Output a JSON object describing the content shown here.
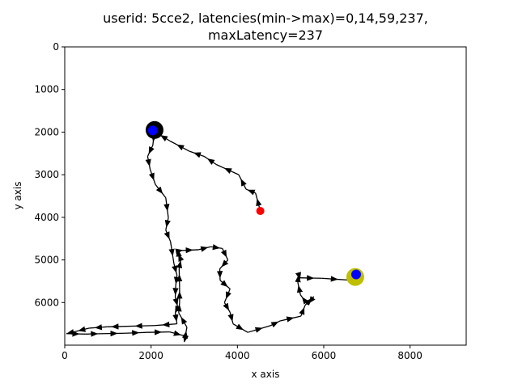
{
  "chart_data": {
    "type": "scatter",
    "title_line1": "userid: 5cce2, latencies(min->max)=0,14,59,237,",
    "title_line2": "maxLatency=237",
    "xlabel": "x axis",
    "ylabel": "y axis",
    "xlim": [
      0,
      9300
    ],
    "ylim": [
      7000,
      0
    ],
    "y_inverted": true,
    "xticks": [
      0,
      2000,
      4000,
      6000,
      8000
    ],
    "yticks": [
      0,
      1000,
      2000,
      3000,
      4000,
      5000,
      6000
    ],
    "grid": false,
    "path_color": "#000000",
    "path": [
      [
        4530,
        3850
      ],
      [
        4420,
        3430
      ],
      [
        4200,
        3340
      ],
      [
        4030,
        3000
      ],
      [
        3510,
        2760
      ],
      [
        3230,
        2570
      ],
      [
        2890,
        2450
      ],
      [
        2440,
        2210
      ],
      [
        2130,
        2020
      ],
      [
        2080,
        1950
      ],
      [
        2040,
        1960
      ],
      [
        2080,
        1980
      ],
      [
        2040,
        2310
      ],
      [
        1920,
        2570
      ],
      [
        1980,
        2880
      ],
      [
        2100,
        3230
      ],
      [
        2340,
        3540
      ],
      [
        2400,
        4010
      ],
      [
        2340,
        4300
      ],
      [
        2450,
        4570
      ],
      [
        2530,
        5090
      ],
      [
        2600,
        5360
      ],
      [
        2570,
        5610
      ],
      [
        2560,
        5880
      ],
      [
        2620,
        6110
      ],
      [
        2560,
        6240
      ],
      [
        2600,
        6500
      ],
      [
        2080,
        6540
      ],
      [
        1340,
        6560
      ],
      [
        980,
        6570
      ],
      [
        570,
        6600
      ],
      [
        210,
        6690
      ],
      [
        40,
        6730
      ],
      [
        480,
        6740
      ],
      [
        900,
        6730
      ],
      [
        1390,
        6720
      ],
      [
        1900,
        6700
      ],
      [
        2430,
        6690
      ],
      [
        2800,
        6790
      ],
      [
        2770,
        6920
      ],
      [
        2830,
        6580
      ],
      [
        2640,
        6240
      ],
      [
        2660,
        6000
      ],
      [
        2660,
        5640
      ],
      [
        2650,
        5200
      ],
      [
        2690,
        5000
      ],
      [
        2640,
        4880
      ],
      [
        2630,
        4790
      ],
      [
        2680,
        4780
      ],
      [
        3100,
        4760
      ],
      [
        3380,
        4690
      ],
      [
        3650,
        4730
      ],
      [
        3780,
        5000
      ],
      [
        3590,
        5210
      ],
      [
        3600,
        5480
      ],
      [
        3830,
        5680
      ],
      [
        3700,
        6000
      ],
      [
        3830,
        6230
      ],
      [
        3900,
        6500
      ],
      [
        4240,
        6700
      ],
      [
        4770,
        6540
      ],
      [
        4990,
        6430
      ],
      [
        5470,
        6320
      ],
      [
        5570,
        6060
      ],
      [
        5770,
        5860
      ],
      [
        5630,
        6050
      ],
      [
        5460,
        5820
      ],
      [
        5400,
        5530
      ],
      [
        5420,
        5340
      ],
      [
        5440,
        5420
      ],
      [
        5950,
        5430
      ],
      [
        6550,
        5470
      ],
      [
        6730,
        5400
      ]
    ],
    "markers": [
      {
        "x": 2080,
        "y": 1950,
        "r": 11,
        "color": "#000000"
      },
      {
        "x": 2040,
        "y": 1960,
        "r": 6,
        "color": "#0000ff"
      },
      {
        "x": 6730,
        "y": 5400,
        "r": 11,
        "color": "#bfbf00"
      },
      {
        "x": 6750,
        "y": 5340,
        "r": 6,
        "color": "#0000ff"
      },
      {
        "x": 4530,
        "y": 3850,
        "r": 5,
        "color": "#ff0000"
      }
    ]
  }
}
